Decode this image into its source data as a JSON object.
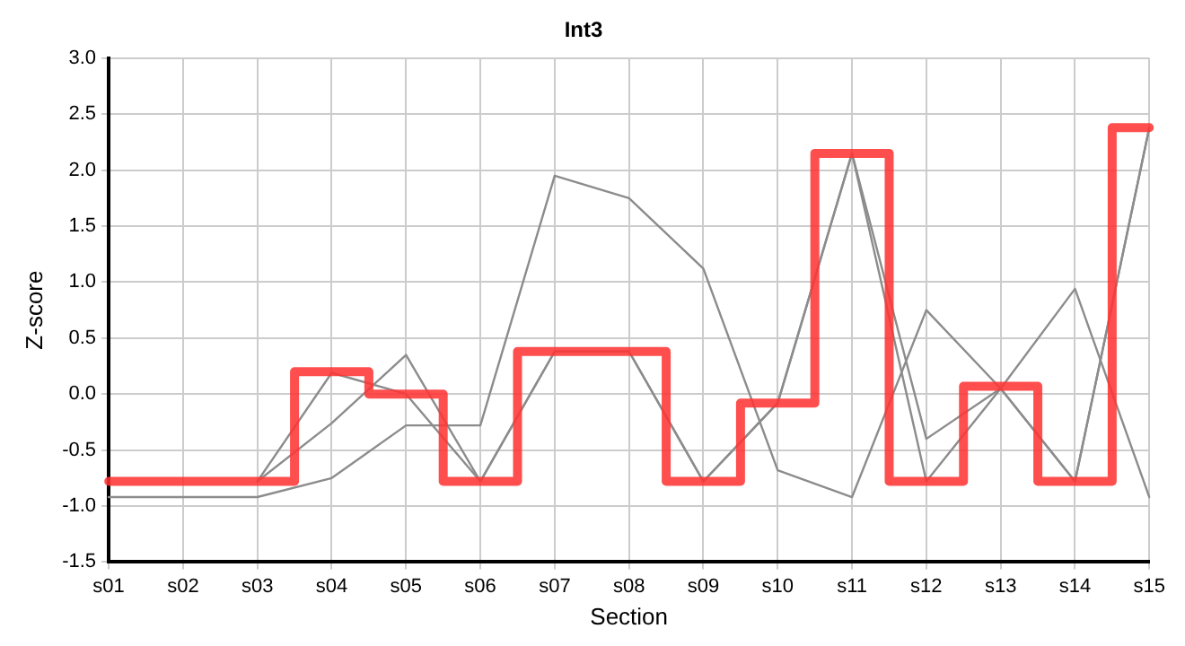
{
  "chart_data": {
    "type": "line",
    "title": "Int3",
    "xlabel": "Section",
    "ylabel": "Z-score",
    "categories": [
      "s01",
      "s02",
      "s03",
      "s04",
      "s05",
      "s06",
      "s07",
      "s08",
      "s09",
      "s10",
      "s11",
      "s12",
      "s13",
      "s14",
      "s15"
    ],
    "series": [
      {
        "type": "line",
        "color": "#8c8c8c",
        "values": [
          -0.92,
          -0.92,
          -0.92,
          -0.75,
          -0.28,
          -0.28,
          1.95,
          1.75,
          1.12,
          -0.68,
          -0.92,
          0.75,
          0.05,
          -0.78,
          2.38
        ]
      },
      {
        "type": "line",
        "color": "#8c8c8c",
        "values": [
          null,
          null,
          -0.78,
          0.19,
          0.0,
          -0.78,
          0.38,
          0.38,
          -0.78,
          -0.08,
          2.15,
          -0.78,
          0.05,
          0.94,
          -0.92
        ]
      },
      {
        "type": "line",
        "color": "#8c8c8c",
        "values": [
          null,
          null,
          -0.78,
          -0.26,
          0.35,
          -0.78,
          0.38,
          0.38,
          -0.78,
          -0.08,
          2.15,
          -0.4,
          0.05,
          -0.78,
          2.38
        ]
      },
      {
        "type": "step",
        "color": "#ff3333",
        "values": [
          -0.78,
          -0.78,
          -0.78,
          0.2,
          0.0,
          -0.78,
          0.38,
          0.38,
          -0.78,
          -0.08,
          2.15,
          -0.78,
          0.07,
          -0.78,
          2.38
        ]
      }
    ],
    "ylim": [
      -1.5,
      3
    ],
    "yticks": [
      {
        "value": -1.5,
        "label": "-1.5"
      },
      {
        "value": -1,
        "label": "-1.0"
      },
      {
        "value": -0.5,
        "label": "-0.5"
      },
      {
        "value": 0,
        "label": "0.0"
      },
      {
        "value": 0.5,
        "label": "0.5"
      },
      {
        "value": 1,
        "label": "1.0"
      },
      {
        "value": 1.5,
        "label": "1.5"
      },
      {
        "value": 2,
        "label": "2.0"
      },
      {
        "value": 2.5,
        "label": "2.5"
      },
      {
        "value": 3,
        "label": "3.0"
      }
    ],
    "grid": true,
    "legend": false,
    "marker": "none",
    "line_style": "solid"
  }
}
